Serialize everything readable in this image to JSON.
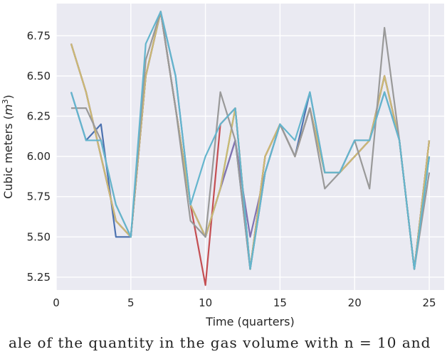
{
  "chart_data": {
    "type": "line",
    "title": "",
    "xlabel": "Time (quarters)",
    "ylabel": "Cubic meters",
    "ylabel_unit_base": "m",
    "ylabel_unit_exp": "3",
    "xlim": [
      0,
      26
    ],
    "ylim": [
      5.17,
      6.95
    ],
    "xticks": [
      0,
      5,
      10,
      15,
      20,
      25
    ],
    "yticks": [
      5.25,
      5.5,
      5.75,
      6.0,
      6.25,
      6.5,
      6.75
    ],
    "ytick_labels": [
      "5.25",
      "5.50",
      "5.75",
      "6.00",
      "6.25",
      "6.50",
      "6.75"
    ],
    "grid": true,
    "background": "#eaeaf2",
    "x": [
      1,
      2,
      3,
      4,
      5,
      6,
      7,
      8,
      9,
      10,
      11,
      12,
      13,
      14,
      15,
      16,
      17,
      18,
      19,
      20,
      21,
      22,
      23,
      24,
      25
    ],
    "series": [
      {
        "color": "#4c72b0",
        "values": [
          6.4,
          6.1,
          6.2,
          5.5,
          5.5,
          6.5,
          6.9,
          6.5,
          5.7,
          5.5,
          5.8,
          6.1,
          5.3,
          5.9,
          6.2,
          6.0,
          6.4,
          5.9,
          5.9,
          6.1,
          6.1,
          6.4,
          6.1,
          5.3,
          6.0
        ]
      },
      {
        "color": "#55a868",
        "values": [
          6.7,
          6.4,
          6.0,
          5.6,
          5.5,
          6.5,
          6.9,
          6.3,
          5.7,
          5.5,
          5.8,
          6.3,
          5.3,
          6.0,
          6.2,
          6.0,
          6.3,
          5.9,
          5.9,
          6.0,
          6.1,
          6.5,
          6.1,
          5.3,
          6.1
        ]
      },
      {
        "color": "#c44e52",
        "values": [
          6.7,
          6.4,
          6.0,
          5.6,
          5.5,
          6.5,
          6.9,
          6.3,
          5.7,
          5.2,
          6.2,
          6.3,
          5.3,
          6.0,
          6.2,
          6.0,
          6.3,
          5.9,
          5.9,
          6.0,
          6.1,
          6.5,
          6.1,
          5.3,
          6.1
        ]
      },
      {
        "color": "#8172b2",
        "values": [
          6.7,
          6.4,
          6.0,
          5.6,
          5.5,
          6.5,
          6.9,
          6.3,
          5.7,
          5.5,
          5.8,
          6.1,
          5.5,
          5.9,
          6.2,
          6.0,
          6.3,
          5.9,
          5.9,
          6.0,
          6.1,
          6.5,
          6.1,
          5.3,
          6.1
        ]
      },
      {
        "color": "#ccb974",
        "values": [
          6.7,
          6.4,
          6.0,
          5.6,
          5.5,
          6.5,
          6.9,
          6.3,
          5.7,
          5.5,
          5.8,
          6.3,
          5.3,
          6.0,
          6.2,
          6.0,
          6.3,
          5.9,
          5.9,
          6.0,
          6.1,
          6.5,
          6.1,
          5.3,
          6.1
        ]
      },
      {
        "color": "#999999",
        "values": [
          6.3,
          6.3,
          6.1,
          5.7,
          5.5,
          6.6,
          6.9,
          6.3,
          5.6,
          5.5,
          6.4,
          6.1,
          5.3,
          5.9,
          6.2,
          6.0,
          6.3,
          5.8,
          5.9,
          6.1,
          5.8,
          6.8,
          6.1,
          5.3,
          5.9
        ]
      },
      {
        "color": "#64b5cd",
        "values": [
          6.4,
          6.1,
          6.1,
          5.7,
          5.5,
          6.7,
          6.9,
          6.5,
          5.7,
          6.0,
          6.2,
          6.3,
          5.3,
          5.9,
          6.2,
          6.1,
          6.4,
          5.9,
          5.9,
          6.1,
          6.1,
          6.4,
          6.1,
          5.3,
          6.0
        ]
      }
    ]
  },
  "caption": "ale of the quantity in the gas volume with n = 10 and"
}
